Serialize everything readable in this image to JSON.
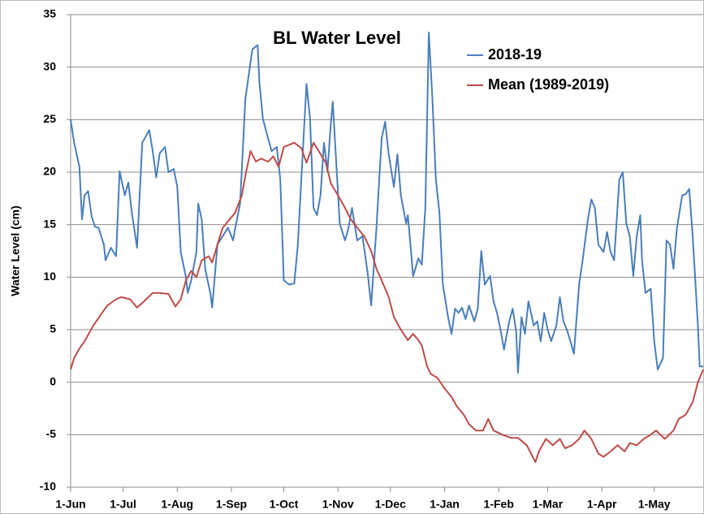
{
  "chart_data": {
    "type": "line",
    "title": "BL Water Level",
    "ylabel": "Water Level (cm)",
    "xlim": [
      0,
      362
    ],
    "ylim": [
      -10,
      35
    ],
    "xticks": [
      {
        "value": 0,
        "label": "1-Jun"
      },
      {
        "value": 30,
        "label": "1-Jul"
      },
      {
        "value": 61,
        "label": "1-Aug"
      },
      {
        "value": 92,
        "label": "1-Sep"
      },
      {
        "value": 122,
        "label": "1-Oct"
      },
      {
        "value": 153,
        "label": "1-Nov"
      },
      {
        "value": 183,
        "label": "1-Dec"
      },
      {
        "value": 214,
        "label": "1-Jan"
      },
      {
        "value": 245,
        "label": "1-Feb"
      },
      {
        "value": 273,
        "label": "1-Mar"
      },
      {
        "value": 304,
        "label": "1-Apr"
      },
      {
        "value": 334,
        "label": "1-May"
      }
    ],
    "yticks": [
      -10,
      -5,
      0,
      5,
      10,
      15,
      20,
      25,
      30,
      35
    ],
    "grid": true,
    "legend": "upper right",
    "series": [
      {
        "name": "2018-19",
        "color": "#4a7ebb",
        "x": [
          0,
          2,
          5,
          6.5,
          8,
          10,
          12,
          14,
          16,
          19,
          20,
          23,
          26,
          28,
          31,
          33,
          35,
          38,
          41,
          45,
          47,
          49,
          51,
          54,
          56,
          59,
          61,
          63,
          66,
          67,
          69,
          72,
          73,
          75,
          77,
          80,
          81,
          84,
          87,
          90,
          93,
          94,
          97,
          100,
          104,
          107,
          108,
          110,
          113,
          115,
          118,
          120,
          122,
          125,
          128,
          130,
          133,
          135,
          137,
          139,
          141,
          143,
          145,
          147,
          149,
          150,
          152,
          154,
          157,
          159,
          161,
          164,
          167,
          170,
          172,
          175,
          178,
          180,
          182,
          185,
          187,
          189,
          192,
          193,
          196,
          199,
          201,
          203,
          205,
          207,
          209,
          211,
          213,
          216,
          218,
          220,
          222,
          224,
          226,
          228,
          231,
          233,
          235,
          237,
          240,
          242,
          244,
          246,
          248,
          251,
          253,
          255,
          256,
          258,
          260,
          262,
          265,
          267,
          269,
          271,
          273,
          275,
          278,
          280,
          282,
          284,
          286,
          288,
          291,
          293,
          296,
          298,
          300,
          302,
          305,
          307,
          309,
          311,
          314,
          316,
          318,
          320,
          322,
          324,
          326,
          327,
          329,
          332,
          334,
          336,
          339,
          341,
          343,
          345,
          347,
          350,
          352,
          354,
          356,
          359,
          360,
          362
        ],
        "values": [
          25,
          22.8,
          20.5,
          15.5,
          17.8,
          18.2,
          15.8,
          14.8,
          14.7,
          13.1,
          11.6,
          12.8,
          12,
          20.1,
          17.8,
          19,
          16.2,
          12.8,
          22.8,
          24,
          22,
          19.5,
          21.8,
          22.4,
          20,
          20.3,
          18.6,
          12.4,
          10,
          8.5,
          9.7,
          12.4,
          17,
          15.5,
          10.8,
          8.4,
          7.1,
          13.1,
          13.9,
          14.7,
          13.5,
          14.5,
          17,
          27,
          31.7,
          32.1,
          28.6,
          25.1,
          23.2,
          22,
          22.4,
          19.3,
          9.7,
          9.3,
          9.4,
          13.1,
          22.4,
          28.4,
          25.1,
          16.6,
          15.9,
          17.8,
          22.8,
          20.1,
          24.8,
          26.7,
          20.9,
          15.1,
          13.5,
          14.7,
          16.6,
          13.5,
          13.9,
          10.4,
          7.3,
          14.7,
          23.2,
          24.8,
          21.7,
          18.6,
          21.7,
          17.8,
          15.1,
          15.9,
          10.1,
          11.8,
          11.2,
          16.6,
          33.3,
          27,
          19.3,
          16.2,
          9.3,
          6.2,
          4.6,
          7,
          6.6,
          7.1,
          6,
          7.3,
          5.8,
          7,
          12.5,
          9.3,
          10.1,
          7.7,
          6.6,
          5,
          3.1,
          5.8,
          7,
          4.8,
          0.9,
          6.2,
          4.6,
          7.7,
          5.4,
          5.8,
          3.9,
          6.6,
          5,
          3.9,
          5.4,
          8.1,
          5.8,
          5,
          3.9,
          2.7,
          9.3,
          11.6,
          15.5,
          17.4,
          16.6,
          13.1,
          12.4,
          14.3,
          12.4,
          11.6,
          19.3,
          20,
          15.1,
          13.9,
          10.1,
          13.9,
          15.9,
          11.6,
          8.5,
          8.9,
          3.9,
          1.2,
          2.3,
          13.5,
          13.1,
          10.8,
          14.7,
          17.8,
          17.9,
          18.4,
          13.9,
          5.4,
          1.5,
          1.5
        ]
      },
      {
        "name": "Mean (1989-2019)",
        "color": "#be4b48",
        "x": [
          0,
          2,
          5,
          8,
          13,
          18,
          21,
          26,
          29,
          34,
          38,
          42,
          47,
          51,
          56,
          60,
          63,
          66,
          69,
          72,
          75,
          79,
          81,
          84,
          87,
          91,
          94,
          98,
          100,
          103,
          106,
          109,
          113,
          116,
          119,
          122,
          125,
          128,
          132,
          135,
          139,
          142,
          146,
          149,
          153,
          157,
          160,
          164,
          168,
          172,
          175,
          178,
          182,
          185,
          189,
          193,
          196,
          199,
          201,
          204,
          206,
          210,
          214,
          218,
          221,
          225,
          228,
          232,
          236,
          239,
          242,
          247,
          252,
          256,
          261,
          266,
          268,
          272,
          276,
          280,
          283,
          287,
          291,
          294,
          298,
          302,
          305,
          309,
          313,
          317,
          320,
          324,
          328,
          332,
          335,
          340,
          345,
          348,
          352,
          356,
          359,
          362
        ],
        "values": [
          1.2,
          2.3,
          3.2,
          3.9,
          5.4,
          6.6,
          7.3,
          7.9,
          8.1,
          7.9,
          7.1,
          7.7,
          8.5,
          8.5,
          8.4,
          7.2,
          7.9,
          9.7,
          10.6,
          10,
          11.6,
          12,
          11.4,
          13.1,
          14.7,
          15.5,
          16.1,
          17.8,
          19.7,
          22,
          21,
          21.3,
          21,
          21.5,
          20.5,
          22.4,
          22.6,
          22.8,
          22.3,
          20.9,
          22.8,
          22,
          20.9,
          18.9,
          17.8,
          16.6,
          15.6,
          14.7,
          13.9,
          12.5,
          10.8,
          9.7,
          8.1,
          6.2,
          5,
          4,
          4.6,
          4,
          3.5,
          1.5,
          0.8,
          0.4,
          -0.6,
          -1.4,
          -2.3,
          -3.1,
          -4,
          -4.6,
          -4.6,
          -3.5,
          -4.6,
          -5,
          -5.3,
          -5.3,
          -6,
          -7.6,
          -6.6,
          -5.4,
          -6,
          -5.4,
          -6.3,
          -6,
          -5.4,
          -4.6,
          -5.4,
          -6.8,
          -7.1,
          -6.6,
          -6,
          -6.6,
          -5.8,
          -6,
          -5.4,
          -5,
          -4.6,
          -5.4,
          -4.6,
          -3.5,
          -3.1,
          -1.9,
          0,
          1.2
        ]
      }
    ]
  }
}
